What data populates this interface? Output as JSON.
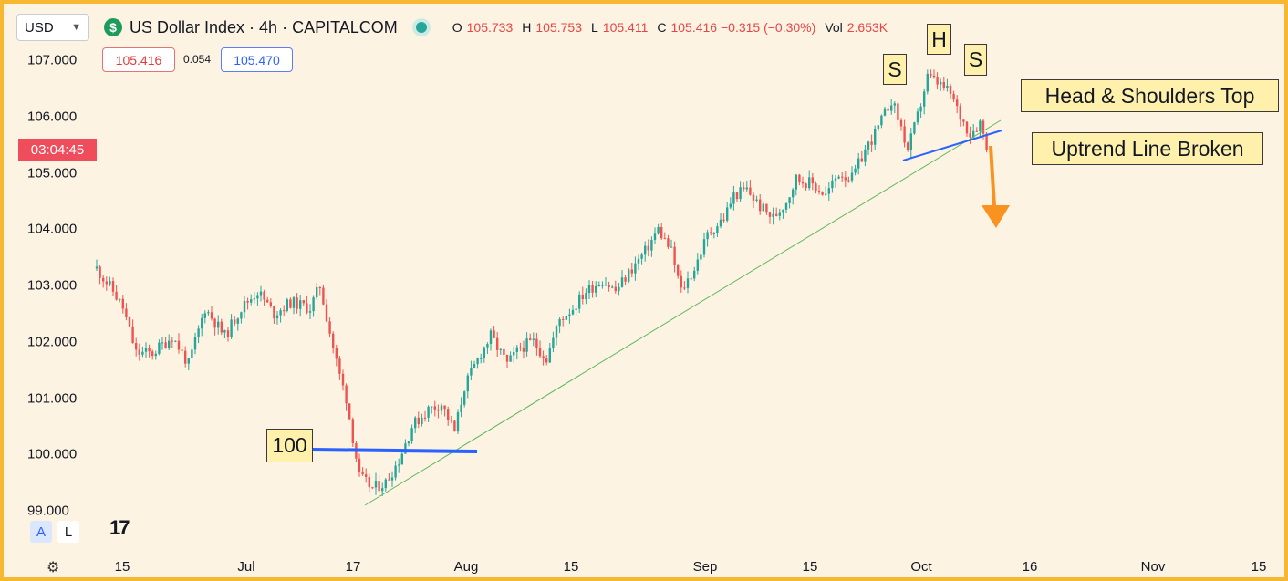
{
  "header": {
    "currency_select": "USD",
    "logo_glyph": "$",
    "title": "US Dollar Index · 4h · CAPITALCOM",
    "ohlc": [
      {
        "k": "O",
        "v": "105.733"
      },
      {
        "k": "H",
        "v": "105.753"
      },
      {
        "k": "L",
        "v": "105.411"
      },
      {
        "k": "C",
        "v": "105.416 −0.315 (−0.30%)"
      },
      {
        "k": "Vol",
        "v": "2.653K"
      }
    ],
    "bid": "105.416",
    "spread": "0.054",
    "ask": "105.470",
    "countdown": "03:04:45"
  },
  "chart_data": {
    "type": "candlestick",
    "yticks": [
      "107.000",
      "106.000",
      "105.000",
      "104.000",
      "103.000",
      "102.000",
      "101.000",
      "100.000",
      "99.000"
    ],
    "xticks": [
      "15",
      "Jul",
      "17",
      "Aug",
      "15",
      "Sep",
      "15",
      "Oct",
      "16",
      "Nov",
      "15"
    ],
    "ylim": [
      98.9,
      107.7
    ],
    "path": [
      [
        0,
        103.3
      ],
      [
        5,
        102.9
      ],
      [
        8,
        102.6
      ],
      [
        12,
        101.8
      ],
      [
        17,
        101.8
      ],
      [
        23,
        102.1
      ],
      [
        28,
        101.6
      ],
      [
        33,
        102.6
      ],
      [
        39,
        102.1
      ],
      [
        44,
        102.6
      ],
      [
        49,
        102.9
      ],
      [
        54,
        102.5
      ],
      [
        59,
        102.7
      ],
      [
        65,
        102.6
      ],
      [
        68,
        103.0
      ],
      [
        72,
        101.9
      ],
      [
        74,
        101.4
      ],
      [
        76,
        101.0
      ],
      [
        80,
        99.6
      ],
      [
        84,
        99.4
      ],
      [
        88,
        99.5
      ],
      [
        92,
        99.9
      ],
      [
        96,
        100.5
      ],
      [
        101,
        100.8
      ],
      [
        105,
        100.9
      ],
      [
        109,
        100.4
      ],
      [
        112,
        101.2
      ],
      [
        117,
        101.8
      ],
      [
        120,
        102.1
      ],
      [
        125,
        101.6
      ],
      [
        129,
        101.9
      ],
      [
        133,
        102.0
      ],
      [
        137,
        101.7
      ],
      [
        141,
        102.4
      ],
      [
        145,
        102.6
      ],
      [
        149,
        102.9
      ],
      [
        154,
        103.1
      ],
      [
        158,
        102.9
      ],
      [
        163,
        103.3
      ],
      [
        167,
        103.6
      ],
      [
        171,
        104.0
      ],
      [
        175,
        103.6
      ],
      [
        178,
        102.9
      ],
      [
        182,
        103.3
      ],
      [
        186,
        103.9
      ],
      [
        191,
        104.2
      ],
      [
        194,
        104.6
      ],
      [
        198,
        104.7
      ],
      [
        202,
        104.4
      ],
      [
        206,
        104.2
      ],
      [
        210,
        104.5
      ],
      [
        213,
        104.9
      ],
      [
        218,
        104.8
      ],
      [
        222,
        104.6
      ],
      [
        226,
        105.0
      ],
      [
        230,
        104.9
      ],
      [
        234,
        105.4
      ],
      [
        238,
        105.8
      ],
      [
        242,
        106.3
      ],
      [
        245,
        105.8
      ],
      [
        247,
        105.4
      ],
      [
        250,
        106.0
      ],
      [
        253,
        106.7
      ],
      [
        256,
        106.6
      ],
      [
        260,
        106.4
      ],
      [
        263,
        106.0
      ],
      [
        266,
        105.7
      ],
      [
        269,
        105.9
      ],
      [
        271,
        105.5
      ]
    ],
    "annotations": {
      "level_label": "100",
      "pattern_label": "Head & Shoulders Top",
      "break_label": "Uptrend Line Broken",
      "left_shoulder": "S",
      "head": "H",
      "right_shoulder": "S"
    },
    "colors": {
      "up": "#26a69a",
      "down": "#ef5350",
      "trend": "#5cb85c",
      "neckline": "#2962ff",
      "arrow": "#f7931e"
    }
  },
  "toolbar": {
    "auto_button": "A",
    "log_button": "L",
    "tv_logo": "17"
  }
}
